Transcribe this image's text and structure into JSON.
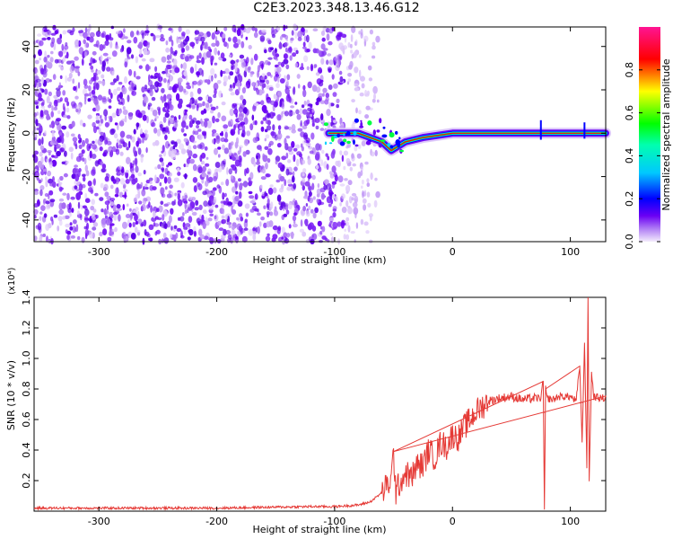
{
  "title": "C2E3.2023.348.13.46.G12",
  "colors": {
    "signal_red": "#e53935",
    "colormap_stops": [
      "#e8d8f8",
      "#9a5cf0",
      "#6a00f4",
      "#0000ff",
      "#00d0ff",
      "#00ff40",
      "#ffff00",
      "#ff0000",
      "#ff1493"
    ]
  },
  "chart_data": [
    {
      "type": "heatmap",
      "xlabel": "Height of straight line (km)",
      "ylabel": "Frequency (Hz)",
      "xlim": [
        -355,
        130
      ],
      "ylim": [
        -50,
        49
      ],
      "xticks": [
        -300,
        -200,
        -100,
        0,
        100
      ],
      "yticks": [
        -40,
        -20,
        0,
        20,
        40
      ],
      "colorbar": {
        "label": "Normalized spectral amplitude",
        "range": [
          0.0,
          1.0
        ],
        "ticks": [
          0.0,
          0.2,
          0.4,
          0.6,
          0.8
        ]
      },
      "description_points": {
        "noise_region_x": [
          -355,
          -85
        ],
        "signal_track": [
          {
            "x": -105,
            "y": 0
          },
          {
            "x": -80,
            "y": 0
          },
          {
            "x": -60,
            "y": -4
          },
          {
            "x": -52,
            "y": -8
          },
          {
            "x": -40,
            "y": -4
          },
          {
            "x": -25,
            "y": -2
          },
          {
            "x": 0,
            "y": 0
          },
          {
            "x": 60,
            "y": 0
          },
          {
            "x": 130,
            "y": 0
          }
        ]
      }
    },
    {
      "type": "line",
      "xlabel": "Height of straight line (km)",
      "ylabel": "SNR (10 * v/v)",
      "scale_label": "(x10⁴)",
      "xlim": [
        -355,
        130
      ],
      "ylim": [
        0,
        1.4
      ],
      "xticks": [
        -300,
        -200,
        -100,
        0,
        100
      ],
      "yticks": [
        0.2,
        0.4,
        0.6,
        0.8,
        1.0,
        1.2,
        1.4
      ],
      "series": [
        {
          "x": [
            -355,
            -300,
            -200,
            -120,
            -100,
            -80,
            -70,
            -60,
            -52,
            -50,
            -48,
            -45,
            -40,
            -35,
            -30,
            -25,
            -20,
            -15,
            -10,
            -5,
            0,
            5,
            10,
            20,
            30,
            40,
            50,
            60,
            70,
            75,
            77,
            78,
            79,
            80,
            85,
            90,
            100,
            105,
            108,
            110,
            112,
            114,
            115,
            116,
            118,
            120,
            125,
            130
          ],
          "values": [
            0.02,
            0.02,
            0.02,
            0.03,
            0.03,
            0.04,
            0.06,
            0.12,
            0.2,
            0.39,
            0.12,
            0.18,
            0.25,
            0.22,
            0.3,
            0.3,
            0.4,
            0.35,
            0.45,
            0.42,
            0.5,
            0.48,
            0.55,
            0.65,
            0.72,
            0.74,
            0.75,
            0.73,
            0.74,
            0.74,
            0.85,
            0.01,
            0.8,
            0.74,
            0.73,
            0.75,
            0.75,
            0.72,
            0.95,
            0.45,
            1.1,
            0.3,
            1.4,
            0.21,
            0.9,
            0.75,
            0.74,
            0.74
          ]
        }
      ]
    }
  ]
}
